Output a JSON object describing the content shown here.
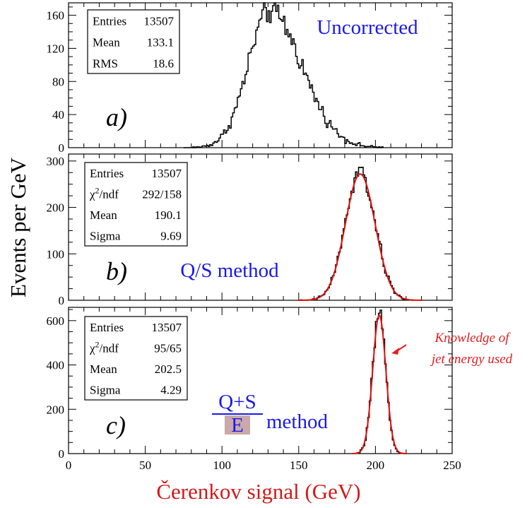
{
  "figure": {
    "ylabel": "Events per GeV",
    "xlabel": "Čerenkov signal (GeV)",
    "colors": {
      "histogram": "#000000",
      "fit": "#dd1111",
      "method_text": "#1a1ae6",
      "annotation": "#e02020",
      "fraction_box": "#c9a9a9"
    }
  },
  "chart_data": [
    {
      "type": "histogram",
      "panel_label": "a)",
      "title": "Uncorrected",
      "xlim": [
        0,
        250
      ],
      "ylim": [
        0,
        175
      ],
      "x_ticks": [
        "0",
        "50",
        "100",
        "150",
        "200",
        "250"
      ],
      "y_ticks": [
        0,
        40,
        80,
        120,
        160
      ],
      "stats": [
        {
          "label": "Entries",
          "value": "13507"
        },
        {
          "label": "Mean",
          "value": "133.1"
        },
        {
          "label": "RMS",
          "value": "18.6"
        }
      ],
      "distribution": {
        "shape": "skewed-gaussian",
        "mean": 131,
        "sigma_left": 14,
        "sigma_right": 21,
        "peak": 165,
        "x_range": [
          75,
          205
        ]
      },
      "fit": null
    },
    {
      "type": "histogram",
      "panel_label": "b)",
      "title": "Q/S method",
      "xlim": [
        0,
        250
      ],
      "ylim": [
        0,
        315
      ],
      "x_ticks": [
        "0",
        "50",
        "100",
        "150",
        "200",
        "250"
      ],
      "y_ticks": [
        0,
        100,
        200,
        300
      ],
      "stats": [
        {
          "label": "Entries",
          "value": "13507"
        },
        {
          "label": "χ²/ndf",
          "value": "292/158"
        },
        {
          "label": "Mean",
          "value": "190.1"
        },
        {
          "label": "Sigma",
          "value": "9.69"
        }
      ],
      "distribution": {
        "shape": "gaussian",
        "mean": 190.1,
        "sigma": 9.69,
        "peak": 275,
        "x_range": [
          150,
          225
        ]
      },
      "fit": {
        "type": "gaussian",
        "mean": 190.1,
        "sigma": 9.69,
        "peak": 272
      }
    },
    {
      "type": "histogram",
      "panel_label": "c)",
      "title": "method",
      "title_fraction": {
        "numerator": "Q+S",
        "denominator": "E"
      },
      "xlim": [
        0,
        250
      ],
      "ylim": [
        0,
        660
      ],
      "x_ticks": [
        "0",
        "50",
        "100",
        "150",
        "200",
        "250"
      ],
      "y_ticks": [
        0,
        200,
        400,
        600
      ],
      "stats": [
        {
          "label": "Entries",
          "value": "13507"
        },
        {
          "label": "χ²/ndf",
          "value": "95/65"
        },
        {
          "label": "Mean",
          "value": "202.5"
        },
        {
          "label": "Sigma",
          "value": "4.29"
        }
      ],
      "distribution": {
        "shape": "gaussian",
        "mean": 202.5,
        "sigma": 4.29,
        "peak": 625,
        "x_range": [
          188,
          218
        ]
      },
      "fit": {
        "type": "gaussian",
        "mean": 202.5,
        "sigma": 4.29,
        "peak": 625
      },
      "annotation": {
        "lines": [
          "Knowledge of",
          "jet energy used"
        ],
        "points_to_x": 204
      }
    }
  ]
}
